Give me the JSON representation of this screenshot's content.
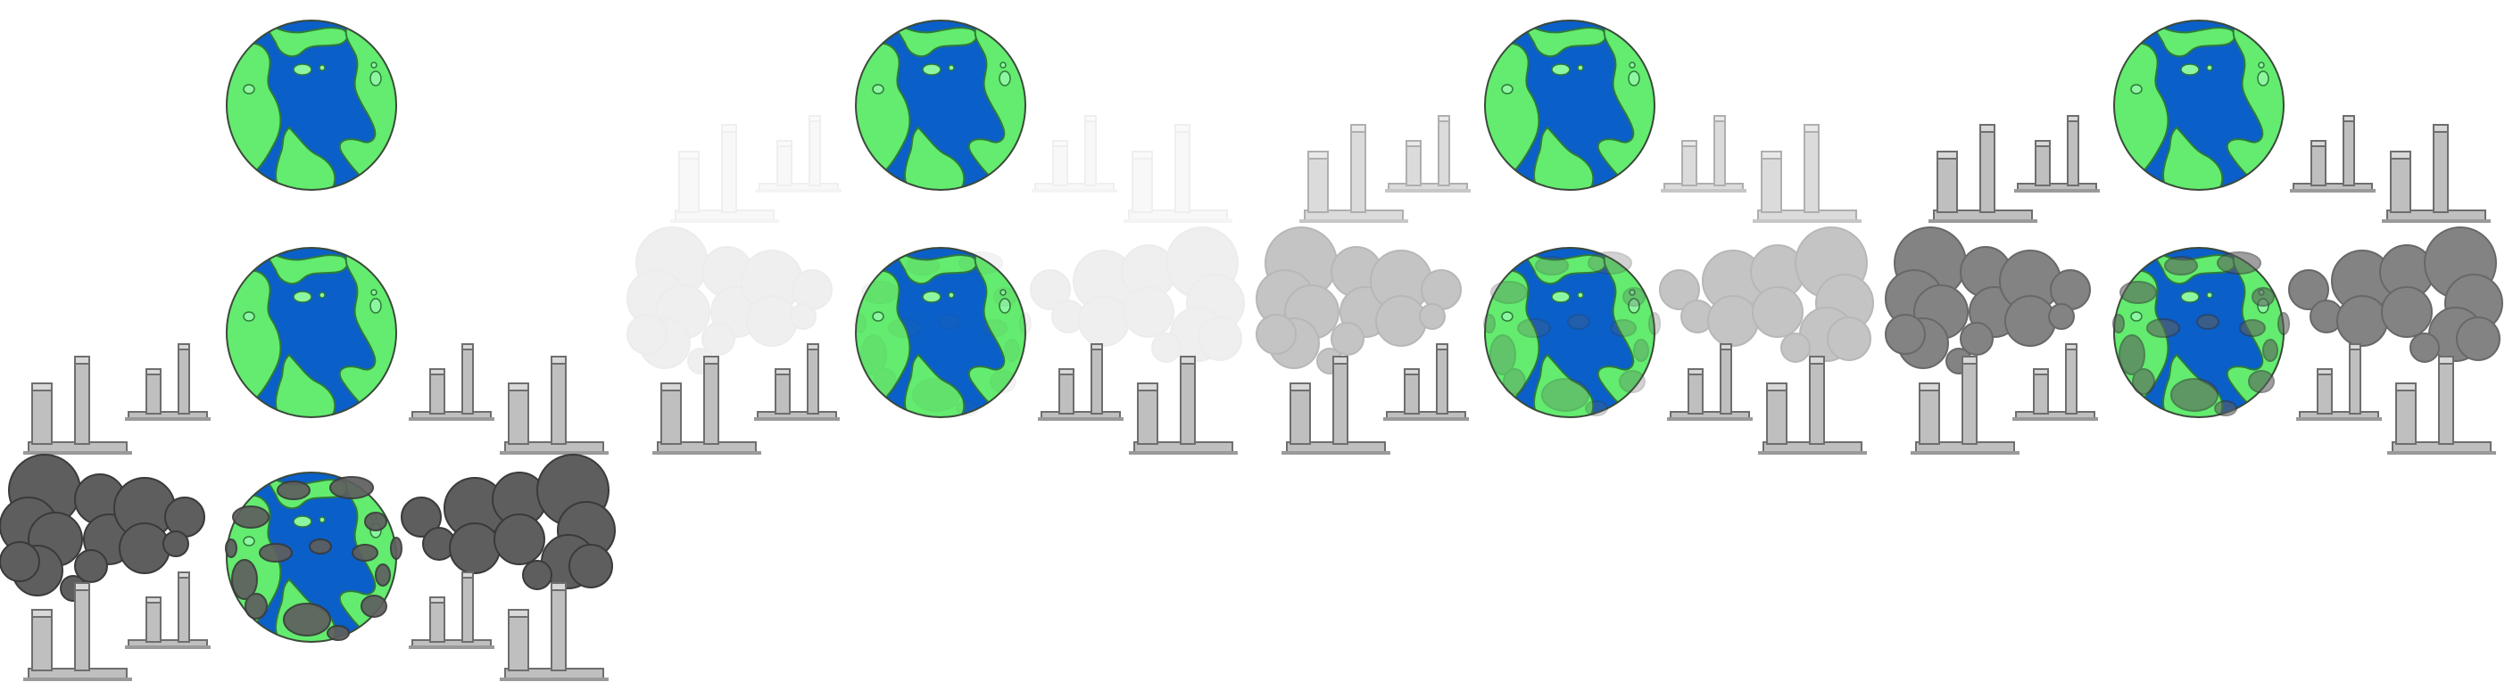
{
  "scene": {
    "description_name": "earth-pollution-sequence",
    "colors": {
      "ocean": "#0a5fc9",
      "land": "#63ec6f",
      "land_highlight": "#8cf7a0",
      "outline": "#3b4a3b",
      "factory_fill": "#bfbfbf",
      "factory_stroke": "#6e6e6e",
      "smoke": "#5e5e5e",
      "smoke_stroke": "#3a3a3a",
      "background": "#ffffff"
    },
    "frames": [
      {
        "name": "frame-intro",
        "pollution_level": 1.0,
        "factory_opacity": 1.0
      },
      {
        "name": "frame-stage-1",
        "pollution_level": 0.1,
        "factory_opacity": 0.1
      },
      {
        "name": "frame-stage-2",
        "pollution_level": 0.4,
        "factory_opacity": 0.55
      },
      {
        "name": "frame-stage-3",
        "pollution_level": 0.85,
        "factory_opacity": 1.0
      }
    ]
  }
}
